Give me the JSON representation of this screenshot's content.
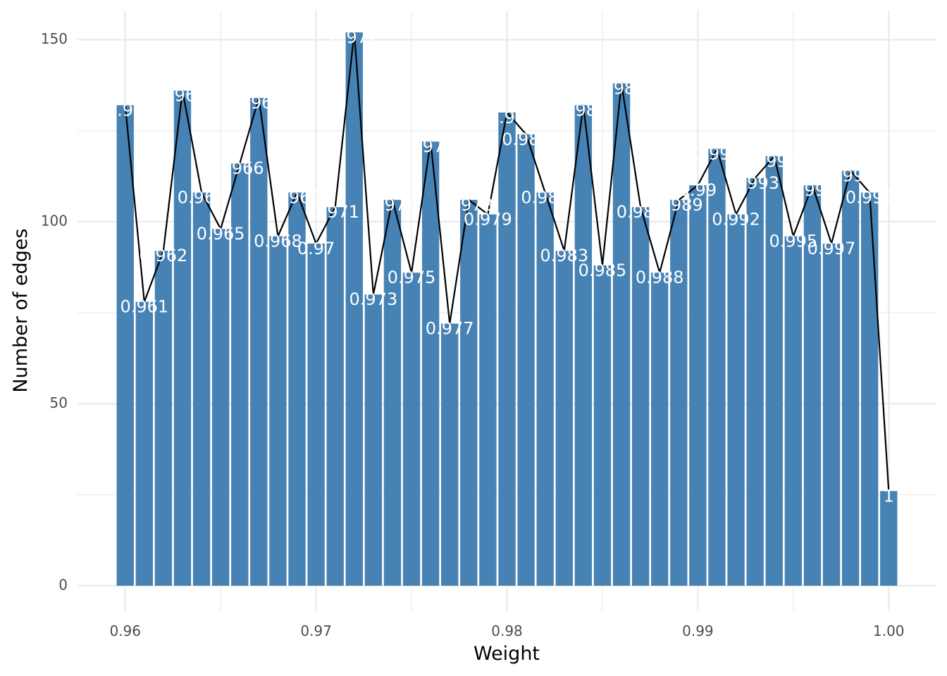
{
  "chart_data": {
    "type": "bar",
    "title": "",
    "xlabel": "Weight",
    "ylabel": "Number of edges",
    "xlim": [
      0.9575,
      1.0025
    ],
    "ylim": [
      -7,
      158
    ],
    "x_ticks": [
      0.96,
      0.97,
      0.98,
      0.99,
      1.0
    ],
    "x_tick_labels": [
      "0.96",
      "0.97",
      "0.98",
      "0.99",
      "1.00"
    ],
    "y_ticks": [
      0,
      50,
      100,
      150
    ],
    "y_tick_labels": [
      "0",
      "50",
      "100",
      "150"
    ],
    "grid": true,
    "bar_color": "#4682b4",
    "line_color": "#000000",
    "label_color": "#ffffff",
    "x": [
      0.96,
      0.961,
      0.962,
      0.963,
      0.964,
      0.965,
      0.966,
      0.967,
      0.968,
      0.969,
      0.97,
      0.971,
      0.972,
      0.973,
      0.974,
      0.975,
      0.976,
      0.977,
      0.978,
      0.979,
      0.98,
      0.981,
      0.982,
      0.983,
      0.984,
      0.985,
      0.986,
      0.987,
      0.988,
      0.989,
      0.99,
      0.991,
      0.992,
      0.993,
      0.994,
      0.995,
      0.996,
      0.997,
      0.998,
      0.999,
      1.0
    ],
    "values": [
      132,
      78,
      92,
      136,
      108,
      98,
      116,
      134,
      96,
      108,
      94,
      104,
      152,
      80,
      106,
      86,
      122,
      72,
      106,
      102,
      130,
      124,
      108,
      92,
      132,
      88,
      138,
      104,
      86,
      106,
      110,
      120,
      102,
      112,
      118,
      96,
      110,
      94,
      114,
      108,
      26
    ],
    "bar_labels": [
      "0.96",
      "0.961",
      "0.962",
      "0.963",
      "0.964",
      "0.965",
      "0.966",
      "0.967",
      "0.968",
      "0.969",
      "0.97",
      "0.971",
      "0.972",
      "0.973",
      "0.974",
      "0.975",
      "0.976",
      "0.977",
      "0.978",
      "0.979",
      "0.98",
      "0.981",
      "0.982",
      "0.983",
      "0.984",
      "0.985",
      "0.986",
      "0.987",
      "0.988",
      "0.989",
      "0.99",
      "0.991",
      "0.992",
      "0.993",
      "0.994",
      "0.995",
      "0.996",
      "0.997",
      "0.998",
      "0.999",
      "1"
    ]
  }
}
